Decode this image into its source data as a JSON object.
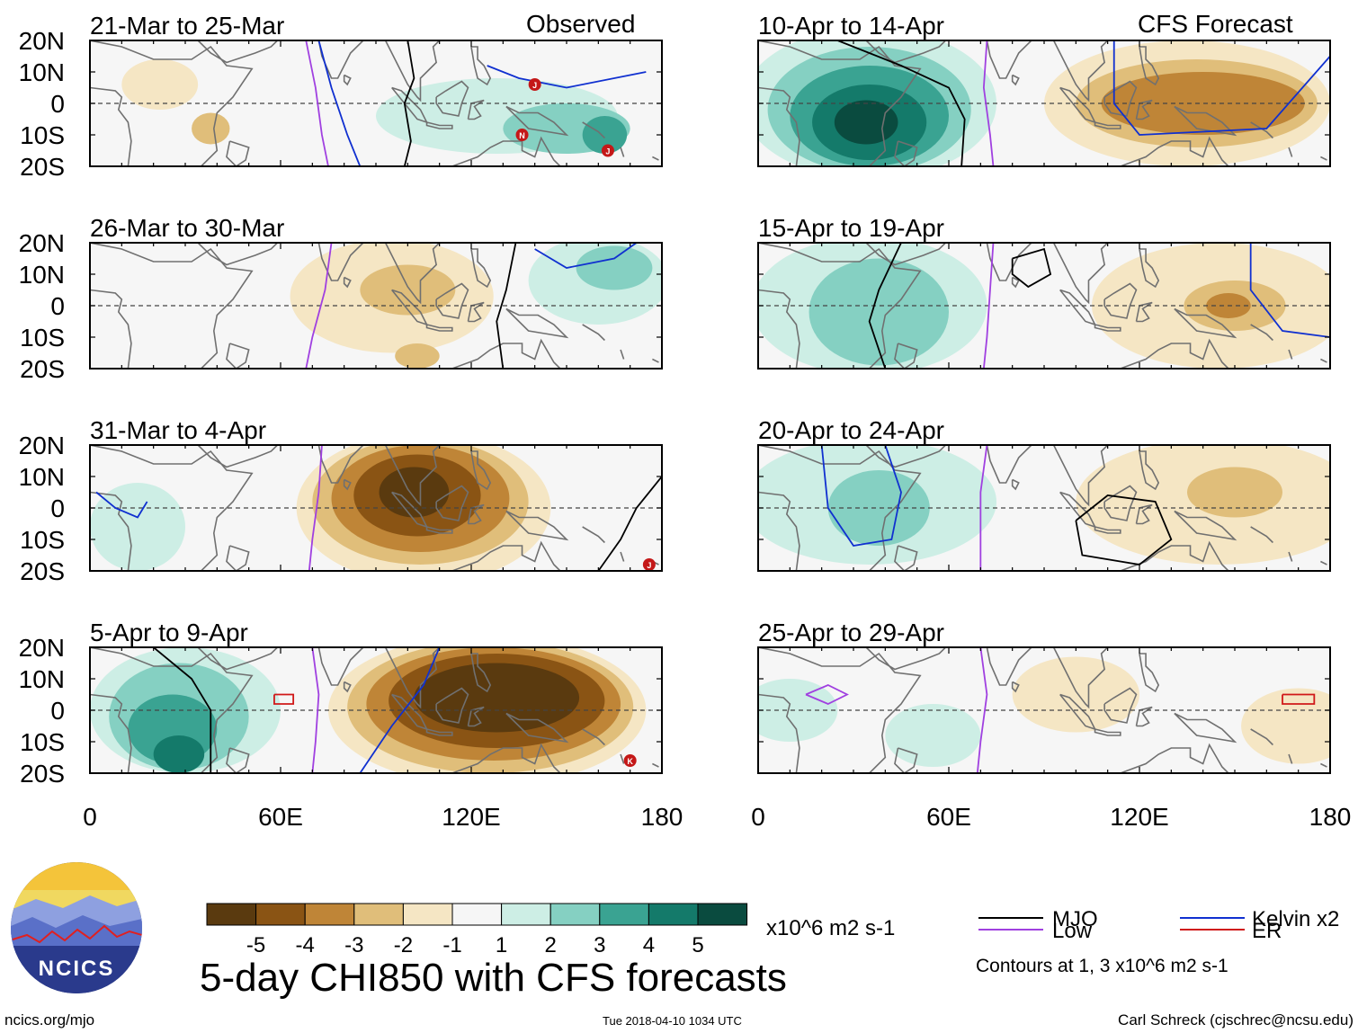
{
  "figure": {
    "title": "5-day CHI850 with CFS forecasts",
    "credit_left": "ncics.org/mjo",
    "timestamp": "Tue 2018-04-10 1034 UTC",
    "credit_right": "Carl Schreck (cjschrec@ncsu.edu)",
    "logo_text": "NCICS"
  },
  "column_labels": {
    "observed": "Observed",
    "forecast": "CFS Forecast"
  },
  "axes": {
    "lat_labels": [
      "20N",
      "10N",
      "0",
      "10S",
      "20S"
    ],
    "lon_labels": [
      "0",
      "60E",
      "120E",
      "180"
    ]
  },
  "panels": [
    {
      "period": "21-Mar to 25-Mar",
      "kind": "observed",
      "anomalies": [
        {
          "lon": 22,
          "lat": 6,
          "rx": 12,
          "ry": 8,
          "value": -1
        },
        {
          "lon": 38,
          "lat": -8,
          "rx": 6,
          "ry": 5,
          "value": -2
        },
        {
          "lon": 128,
          "lat": -4,
          "rx": 38,
          "ry": 12,
          "value": 1
        },
        {
          "lon": 150,
          "lat": -8,
          "rx": 20,
          "ry": 8,
          "value": 2
        },
        {
          "lon": 162,
          "lat": -10,
          "rx": 7,
          "ry": 6,
          "value": 3
        }
      ],
      "contours": [
        {
          "type": "MJO",
          "points": [
            [
              100,
              20
            ],
            [
              102,
              8
            ],
            [
              99,
              0
            ],
            [
              101,
              -12
            ],
            [
              99,
              -20
            ]
          ]
        },
        {
          "type": "Kelvin",
          "points": [
            [
              72,
              20
            ],
            [
              76,
              5
            ],
            [
              81,
              -10
            ],
            [
              85,
              -20
            ]
          ]
        },
        {
          "type": "Kelvin",
          "points": [
            [
              125,
              12
            ],
            [
              135,
              8
            ],
            [
              150,
              5
            ],
            [
              175,
              10
            ]
          ]
        },
        {
          "type": "Low",
          "points": [
            [
              68,
              20
            ],
            [
              71,
              5
            ],
            [
              73,
              -10
            ],
            [
              75,
              -20
            ]
          ]
        }
      ],
      "storms": [
        {
          "lon": 163,
          "lat": -15,
          "letter": "J"
        },
        {
          "lon": 136,
          "lat": -10,
          "letter": "N"
        },
        {
          "lon": 140,
          "lat": 6,
          "letter": "J"
        }
      ]
    },
    {
      "period": "26-Mar to 30-Mar",
      "kind": "observed",
      "anomalies": [
        {
          "lon": 95,
          "lat": 3,
          "rx": 32,
          "ry": 18,
          "value": -1
        },
        {
          "lon": 100,
          "lat": 5,
          "rx": 15,
          "ry": 8,
          "value": -2
        },
        {
          "lon": 103,
          "lat": -16,
          "rx": 7,
          "ry": 4,
          "value": -2
        },
        {
          "lon": 160,
          "lat": 8,
          "rx": 22,
          "ry": 14,
          "value": 1
        },
        {
          "lon": 165,
          "lat": 12,
          "rx": 12,
          "ry": 7,
          "value": 2
        }
      ],
      "contours": [
        {
          "type": "MJO",
          "points": [
            [
              134,
              20
            ],
            [
              131,
              5
            ],
            [
              128,
              -5
            ],
            [
              130,
              -20
            ]
          ]
        },
        {
          "type": "Low",
          "points": [
            [
              76,
              20
            ],
            [
              74,
              5
            ],
            [
              70,
              -10
            ],
            [
              68,
              -20
            ]
          ]
        },
        {
          "type": "Kelvin",
          "points": [
            [
              140,
              18
            ],
            [
              150,
              12
            ],
            [
              165,
              15
            ],
            [
              172,
              20
            ]
          ]
        }
      ],
      "storms": []
    },
    {
      "period": "31-Mar to 4-Apr",
      "kind": "observed",
      "anomalies": [
        {
          "lon": 15,
          "lat": -6,
          "rx": 15,
          "ry": 14,
          "value": 1
        },
        {
          "lon": 105,
          "lat": 0,
          "rx": 40,
          "ry": 24,
          "value": -1
        },
        {
          "lon": 104,
          "lat": 2,
          "rx": 34,
          "ry": 20,
          "value": -2
        },
        {
          "lon": 104,
          "lat": 3,
          "rx": 28,
          "ry": 17,
          "value": -3
        },
        {
          "lon": 103,
          "lat": 4,
          "rx": 20,
          "ry": 13,
          "value": -4
        },
        {
          "lon": 102,
          "lat": 5,
          "rx": 11,
          "ry": 8,
          "value": -5
        }
      ],
      "contours": [
        {
          "type": "MJO",
          "points": [
            [
              160,
              -20
            ],
            [
              167,
              -10
            ],
            [
              172,
              0
            ],
            [
              180,
              10
            ]
          ]
        },
        {
          "type": "Low",
          "points": [
            [
              73,
              20
            ],
            [
              72,
              5
            ],
            [
              70,
              -10
            ],
            [
              69,
              -20
            ]
          ]
        },
        {
          "type": "Kelvin",
          "points": [
            [
              2,
              5
            ],
            [
              8,
              0
            ],
            [
              15,
              -3
            ],
            [
              18,
              2
            ]
          ]
        }
      ],
      "storms": [
        {
          "lon": 176,
          "lat": -18,
          "letter": "J"
        }
      ]
    },
    {
      "period": "5-Apr to 9-Apr",
      "kind": "observed",
      "anomalies": [
        {
          "lon": 30,
          "lat": 0,
          "rx": 30,
          "ry": 20,
          "value": 1
        },
        {
          "lon": 28,
          "lat": -2,
          "rx": 22,
          "ry": 17,
          "value": 2
        },
        {
          "lon": 26,
          "lat": -6,
          "rx": 14,
          "ry": 11,
          "value": 3
        },
        {
          "lon": 28,
          "lat": -14,
          "rx": 8,
          "ry": 6,
          "value": 4
        },
        {
          "lon": 125,
          "lat": 0,
          "rx": 50,
          "ry": 24,
          "value": -1
        },
        {
          "lon": 126,
          "lat": 1,
          "rx": 45,
          "ry": 21,
          "value": -2
        },
        {
          "lon": 127,
          "lat": 2,
          "rx": 40,
          "ry": 18,
          "value": -3
        },
        {
          "lon": 128,
          "lat": 3,
          "rx": 34,
          "ry": 15,
          "value": -4
        },
        {
          "lon": 128,
          "lat": 4,
          "rx": 26,
          "ry": 11,
          "value": -5
        }
      ],
      "contours": [
        {
          "type": "MJO",
          "points": [
            [
              20,
              20
            ],
            [
              32,
              10
            ],
            [
              38,
              0
            ],
            [
              38,
              -20
            ]
          ]
        },
        {
          "type": "Low",
          "points": [
            [
              70,
              20
            ],
            [
              72,
              5
            ],
            [
              71,
              -10
            ],
            [
              70,
              -20
            ]
          ]
        },
        {
          "type": "Kelvin",
          "points": [
            [
              110,
              20
            ],
            [
              105,
              8
            ],
            [
              95,
              -5
            ],
            [
              85,
              -20
            ]
          ]
        },
        {
          "type": "ER",
          "points": [
            [
              58,
              5
            ],
            [
              64,
              5
            ],
            [
              64,
              2
            ],
            [
              58,
              2
            ],
            [
              58,
              5
            ]
          ]
        }
      ],
      "storms": [
        {
          "lon": 170,
          "lat": -16,
          "letter": "K"
        }
      ]
    },
    {
      "period": "10-Apr to 14-Apr",
      "kind": "forecast",
      "anomalies": [
        {
          "lon": 35,
          "lat": 0,
          "rx": 40,
          "ry": 24,
          "value": 1
        },
        {
          "lon": 35,
          "lat": -2,
          "rx": 32,
          "ry": 20,
          "value": 2
        },
        {
          "lon": 35,
          "lat": -4,
          "rx": 25,
          "ry": 16,
          "value": 3
        },
        {
          "lon": 35,
          "lat": -6,
          "rx": 18,
          "ry": 12,
          "value": 4
        },
        {
          "lon": 34,
          "lat": -6,
          "rx": 10,
          "ry": 7,
          "value": 5
        },
        {
          "lon": 135,
          "lat": 0,
          "rx": 45,
          "ry": 20,
          "value": -1
        },
        {
          "lon": 138,
          "lat": 0,
          "rx": 38,
          "ry": 14,
          "value": -2
        },
        {
          "lon": 140,
          "lat": 0,
          "rx": 32,
          "ry": 10,
          "value": -3
        }
      ],
      "contours": [
        {
          "type": "MJO",
          "points": [
            [
              25,
              20
            ],
            [
              45,
              12
            ],
            [
              60,
              5
            ],
            [
              65,
              -5
            ],
            [
              64,
              -20
            ]
          ]
        },
        {
          "type": "Low",
          "points": [
            [
              72,
              20
            ],
            [
              71,
              5
            ],
            [
              73,
              -10
            ],
            [
              74,
              -20
            ]
          ]
        },
        {
          "type": "Kelvin",
          "points": [
            [
              112,
              20
            ],
            [
              112,
              0
            ],
            [
              120,
              -10
            ],
            [
              160,
              -8
            ],
            [
              180,
              15
            ]
          ]
        }
      ],
      "storms": []
    },
    {
      "period": "15-Apr to 19-Apr",
      "kind": "forecast",
      "anomalies": [
        {
          "lon": 35,
          "lat": 0,
          "rx": 37,
          "ry": 22,
          "value": 1
        },
        {
          "lon": 38,
          "lat": -2,
          "rx": 22,
          "ry": 17,
          "value": 2
        },
        {
          "lon": 145,
          "lat": 0,
          "rx": 40,
          "ry": 20,
          "value": -1
        },
        {
          "lon": 150,
          "lat": 0,
          "rx": 16,
          "ry": 8,
          "value": -2
        },
        {
          "lon": 148,
          "lat": 0,
          "rx": 7,
          "ry": 4,
          "value": -3
        }
      ],
      "contours": [
        {
          "type": "MJO",
          "points": [
            [
              45,
              20
            ],
            [
              38,
              5
            ],
            [
              35,
              -5
            ],
            [
              40,
              -20
            ]
          ]
        },
        {
          "type": "MJO",
          "points": [
            [
              80,
              15
            ],
            [
              90,
              18
            ],
            [
              92,
              10
            ],
            [
              85,
              6
            ],
            [
              80,
              10
            ],
            [
              80,
              15
            ]
          ]
        },
        {
          "type": "Kelvin",
          "points": [
            [
              155,
              20
            ],
            [
              155,
              5
            ],
            [
              165,
              -8
            ],
            [
              180,
              -10
            ]
          ]
        },
        {
          "type": "Low",
          "points": [
            [
              74,
              20
            ],
            [
              73,
              5
            ],
            [
              72,
              -10
            ],
            [
              71,
              -20
            ]
          ]
        }
      ],
      "storms": []
    },
    {
      "period": "20-Apr to 24-Apr",
      "kind": "forecast",
      "anomalies": [
        {
          "lon": 35,
          "lat": 2,
          "rx": 40,
          "ry": 20,
          "value": 1
        },
        {
          "lon": 38,
          "lat": 0,
          "rx": 16,
          "ry": 12,
          "value": 2
        },
        {
          "lon": 145,
          "lat": 2,
          "rx": 45,
          "ry": 20,
          "value": -1
        },
        {
          "lon": 150,
          "lat": 5,
          "rx": 15,
          "ry": 8,
          "value": -2
        }
      ],
      "contours": [
        {
          "type": "MJO",
          "points": [
            [
              100,
              -4
            ],
            [
              110,
              4
            ],
            [
              125,
              2
            ],
            [
              130,
              -10
            ],
            [
              120,
              -18
            ],
            [
              102,
              -15
            ],
            [
              100,
              -4
            ]
          ]
        },
        {
          "type": "Kelvin",
          "points": [
            [
              20,
              20
            ],
            [
              22,
              0
            ],
            [
              30,
              -12
            ],
            [
              42,
              -10
            ],
            [
              45,
              5
            ],
            [
              40,
              20
            ]
          ]
        },
        {
          "type": "Low",
          "points": [
            [
              72,
              20
            ],
            [
              70,
              5
            ],
            [
              70,
              -10
            ],
            [
              70,
              -20
            ]
          ]
        }
      ],
      "storms": []
    },
    {
      "period": "25-Apr to 29-Apr",
      "kind": "forecast",
      "anomalies": [
        {
          "lon": 10,
          "lat": 0,
          "rx": 15,
          "ry": 10,
          "value": 1
        },
        {
          "lon": 55,
          "lat": -8,
          "rx": 15,
          "ry": 10,
          "value": 1
        },
        {
          "lon": 100,
          "lat": 5,
          "rx": 20,
          "ry": 12,
          "value": -1
        },
        {
          "lon": 170,
          "lat": -5,
          "rx": 18,
          "ry": 12,
          "value": -1
        }
      ],
      "contours": [
        {
          "type": "ER",
          "points": [
            [
              165,
              5
            ],
            [
              175,
              5
            ],
            [
              175,
              2
            ],
            [
              165,
              2
            ],
            [
              165,
              5
            ]
          ]
        },
        {
          "type": "Low",
          "points": [
            [
              15,
              5
            ],
            [
              22,
              8
            ],
            [
              28,
              5
            ],
            [
              22,
              2
            ],
            [
              15,
              5
            ]
          ]
        },
        {
          "type": "Low",
          "points": [
            [
              70,
              20
            ],
            [
              72,
              5
            ],
            [
              70,
              -10
            ],
            [
              69,
              -20
            ]
          ]
        }
      ],
      "storms": []
    }
  ],
  "colorbar": {
    "colors": [
      "#5a3a0f",
      "#8a5414",
      "#bf8537",
      "#e0be7a",
      "#f5e6c4",
      "#f6f6f6",
      "#cdeee5",
      "#85d0c2",
      "#3aa392",
      "#147a6a",
      "#0a4b3f"
    ],
    "labels": [
      "-5",
      "-4",
      "-3",
      "-2",
      "-1",
      "1",
      "2",
      "3",
      "4",
      "5"
    ],
    "units": "x10^6 m2 s-1"
  },
  "legend": {
    "items": [
      {
        "label": "MJO",
        "color": "#000000"
      },
      {
        "label": "Kelvin x2",
        "color": "#1030d0"
      },
      {
        "label": "Low",
        "color": "#a040e0"
      },
      {
        "label": "ER",
        "color": "#d01818"
      }
    ],
    "note": "Contours at 1, 3 x10^6 m2 s-1"
  },
  "colors": {
    "mjo": "#000000",
    "kelvin": "#1030d0",
    "low": "#a040e0",
    "er": "#d01818",
    "coast": "#707070",
    "storm": "#c41818"
  }
}
